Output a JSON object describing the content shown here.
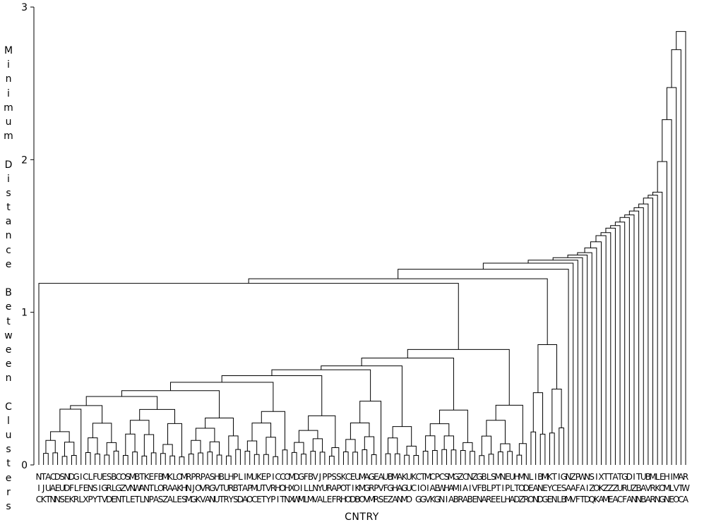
{
  "chart_data": {
    "type": "dendrogram",
    "ylabel": "Minimum Distance Between Clusters",
    "xlabel": "CNTRY",
    "ylim": [
      0,
      3
    ],
    "yticks": [
      "0",
      "1",
      "2",
      "3"
    ],
    "leaves": [
      "NIC",
      "TJK",
      "AUT",
      "CAN",
      "DEN",
      "SUS",
      "NDE",
      "DFK",
      "GLR",
      "IFL",
      "CEX",
      "LNP",
      "FSY",
      "UIT",
      "EGV",
      "SRD",
      "BLE",
      "CGN",
      "OZT",
      "SVL",
      "MNE",
      "BWT",
      "TAL",
      "KNN",
      "ETP",
      "FLA",
      "BOS",
      "MRZ",
      "KAA",
      "LAL",
      "OKE",
      "MHS",
      "RNM",
      "PJG",
      "ROK",
      "PVV",
      "ARA",
      "SGN",
      "HVU",
      "BTT",
      "LUR",
      "HRY",
      "PBS",
      "LTD",
      "IAA",
      "MPO",
      "UMC",
      "KUE",
      "ETT",
      "PVY",
      "IRP",
      "CHI",
      "COT",
      "OHN",
      "MXX",
      "DOW",
      "GIM",
      "FLL",
      "BLM",
      "VNV",
      "JYA",
      "PUL",
      "PRE",
      "SAF",
      "SPR",
      "KOH",
      "CTO",
      "EID",
      "UKB",
      "MMO",
      "AGV",
      "GRM",
      "EPR",
      "AVS",
      "UFE",
      "BGZ",
      "MHA",
      "AAN",
      "KGM",
      "UUO",
      "KC",
      "CIG",
      "TOG",
      "MIV",
      "CAK",
      "PEG",
      "CWN",
      "SHI",
      "MAA",
      "GMB",
      "ZIR",
      "CAA",
      "NIB",
      "ZVE",
      "GFN",
      "BBA",
      "LLR",
      "SPE",
      "MTE",
      "NIL",
      "EPH",
      "ULA",
      "HTD",
      "MOZ",
      "NDR",
      "LEO",
      "IAN",
      "BND",
      "MEG",
      "KYE",
      "TCN",
      "IEL",
      "GSB",
      "NAM",
      "ZAV",
      "PFF",
      "WAT",
      "NID",
      "SZQ",
      "IOK",
      "XKA",
      "TZM",
      "TZE",
      "AZA",
      "TUC",
      "GRF",
      "DUA",
      "IZN",
      "TBN",
      "UAB",
      "BVA",
      "MRR",
      "LKN",
      "EOG",
      "HMN",
      "ILE",
      "MVO",
      "ATC",
      "RWA"
    ],
    "merge_heights": [
      "about 0.3",
      "to about 2.84"
    ]
  }
}
